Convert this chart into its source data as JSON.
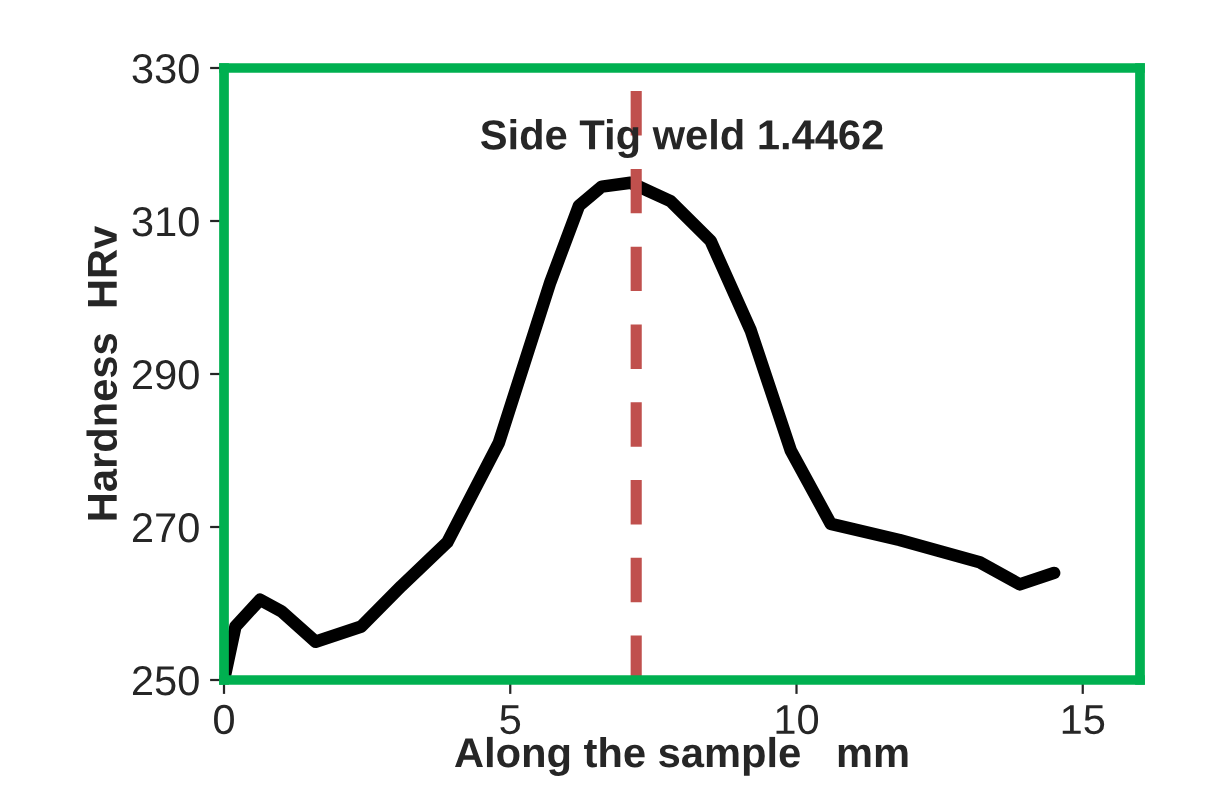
{
  "chart_data": {
    "type": "line",
    "title": "Side Tig weld 1.4462",
    "xlabel": "Along the sample   mm",
    "ylabel": "Hardness  HRv",
    "series": [
      {
        "color": "#000000",
        "x": [
          0,
          0.2,
          0.63,
          1.0,
          1.6,
          2.4,
          3.1,
          3.9,
          4.8,
          5.7,
          6.2,
          6.6,
          7.1,
          7.8,
          8.5,
          9.2,
          9.9,
          10.6,
          11.8,
          13.2,
          13.9,
          14.5
        ],
        "values": [
          250,
          257,
          260.5,
          259,
          255,
          257,
          262.3,
          268,
          281,
          302,
          312,
          314.5,
          315,
          312.6,
          307.4,
          295.7,
          280,
          270.4,
          268.3,
          265.4,
          262.5,
          264
        ]
      }
    ],
    "ref_lines": [
      {
        "axis": "x",
        "value": 7.2,
        "color": "#c0504d",
        "line_style": "dashed"
      }
    ],
    "xlim": [
      0,
      16
    ],
    "ylim": [
      250,
      330
    ],
    "xticks": [
      0,
      5,
      10,
      15
    ],
    "yticks": [
      250,
      270,
      290,
      310,
      330
    ],
    "grid": false,
    "marker": "none",
    "line_style": "solid"
  }
}
